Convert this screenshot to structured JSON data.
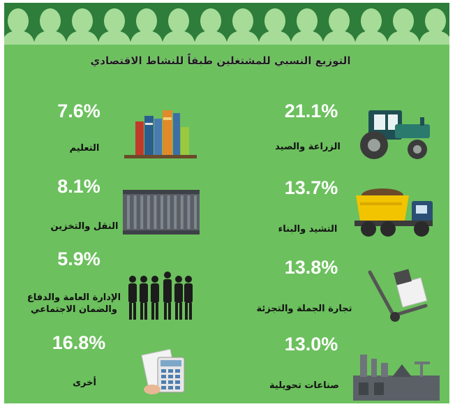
{
  "title": "التوزيع النسبي للمشتغلين طبقاً للنشاط الاقتصادي",
  "colors": {
    "background": "#6cc05e",
    "banner": "#2e7d3a",
    "silhouette": "#a6dc98",
    "value_text": "#ffffff",
    "label_text": "#111111"
  },
  "chart_data": {
    "type": "infographic",
    "title": "التوزيع النسبي للمشتغلين طبقاً للنشاط الاقتصادي",
    "unit": "%",
    "items": [
      {
        "label": "الزراعة والصيد",
        "value": 21.1,
        "display": "21.1%",
        "icon": "tractor-icon"
      },
      {
        "label": "التعليم",
        "value": 7.6,
        "display": "7.6%",
        "icon": "books-icon"
      },
      {
        "label": "التشيد والبناء",
        "value": 13.7,
        "display": "13.7%",
        "icon": "dump-truck-icon"
      },
      {
        "label": "النقل والتخزين",
        "value": 8.1,
        "display": "8.1%",
        "icon": "shipping-container-icon"
      },
      {
        "label": "تجارة الجملة والتجزئة",
        "value": 13.8,
        "display": "13.8%",
        "icon": "hand-truck-icon"
      },
      {
        "label_line1": "الإدارة العامة والدفاع",
        "label_line2": "والضمان الاجتماعي",
        "label": "الإدارة العامة والدفاع والضمان الاجتماعي",
        "value": 5.9,
        "display": "5.9%",
        "icon": "business-people-icon"
      },
      {
        "label": "صناعات تحويلية",
        "value": 13.0,
        "display": "13.0%",
        "icon": "factory-icon"
      },
      {
        "label": "أخرى",
        "value": 16.8,
        "display": "16.8%",
        "icon": "calculator-icon"
      }
    ]
  }
}
